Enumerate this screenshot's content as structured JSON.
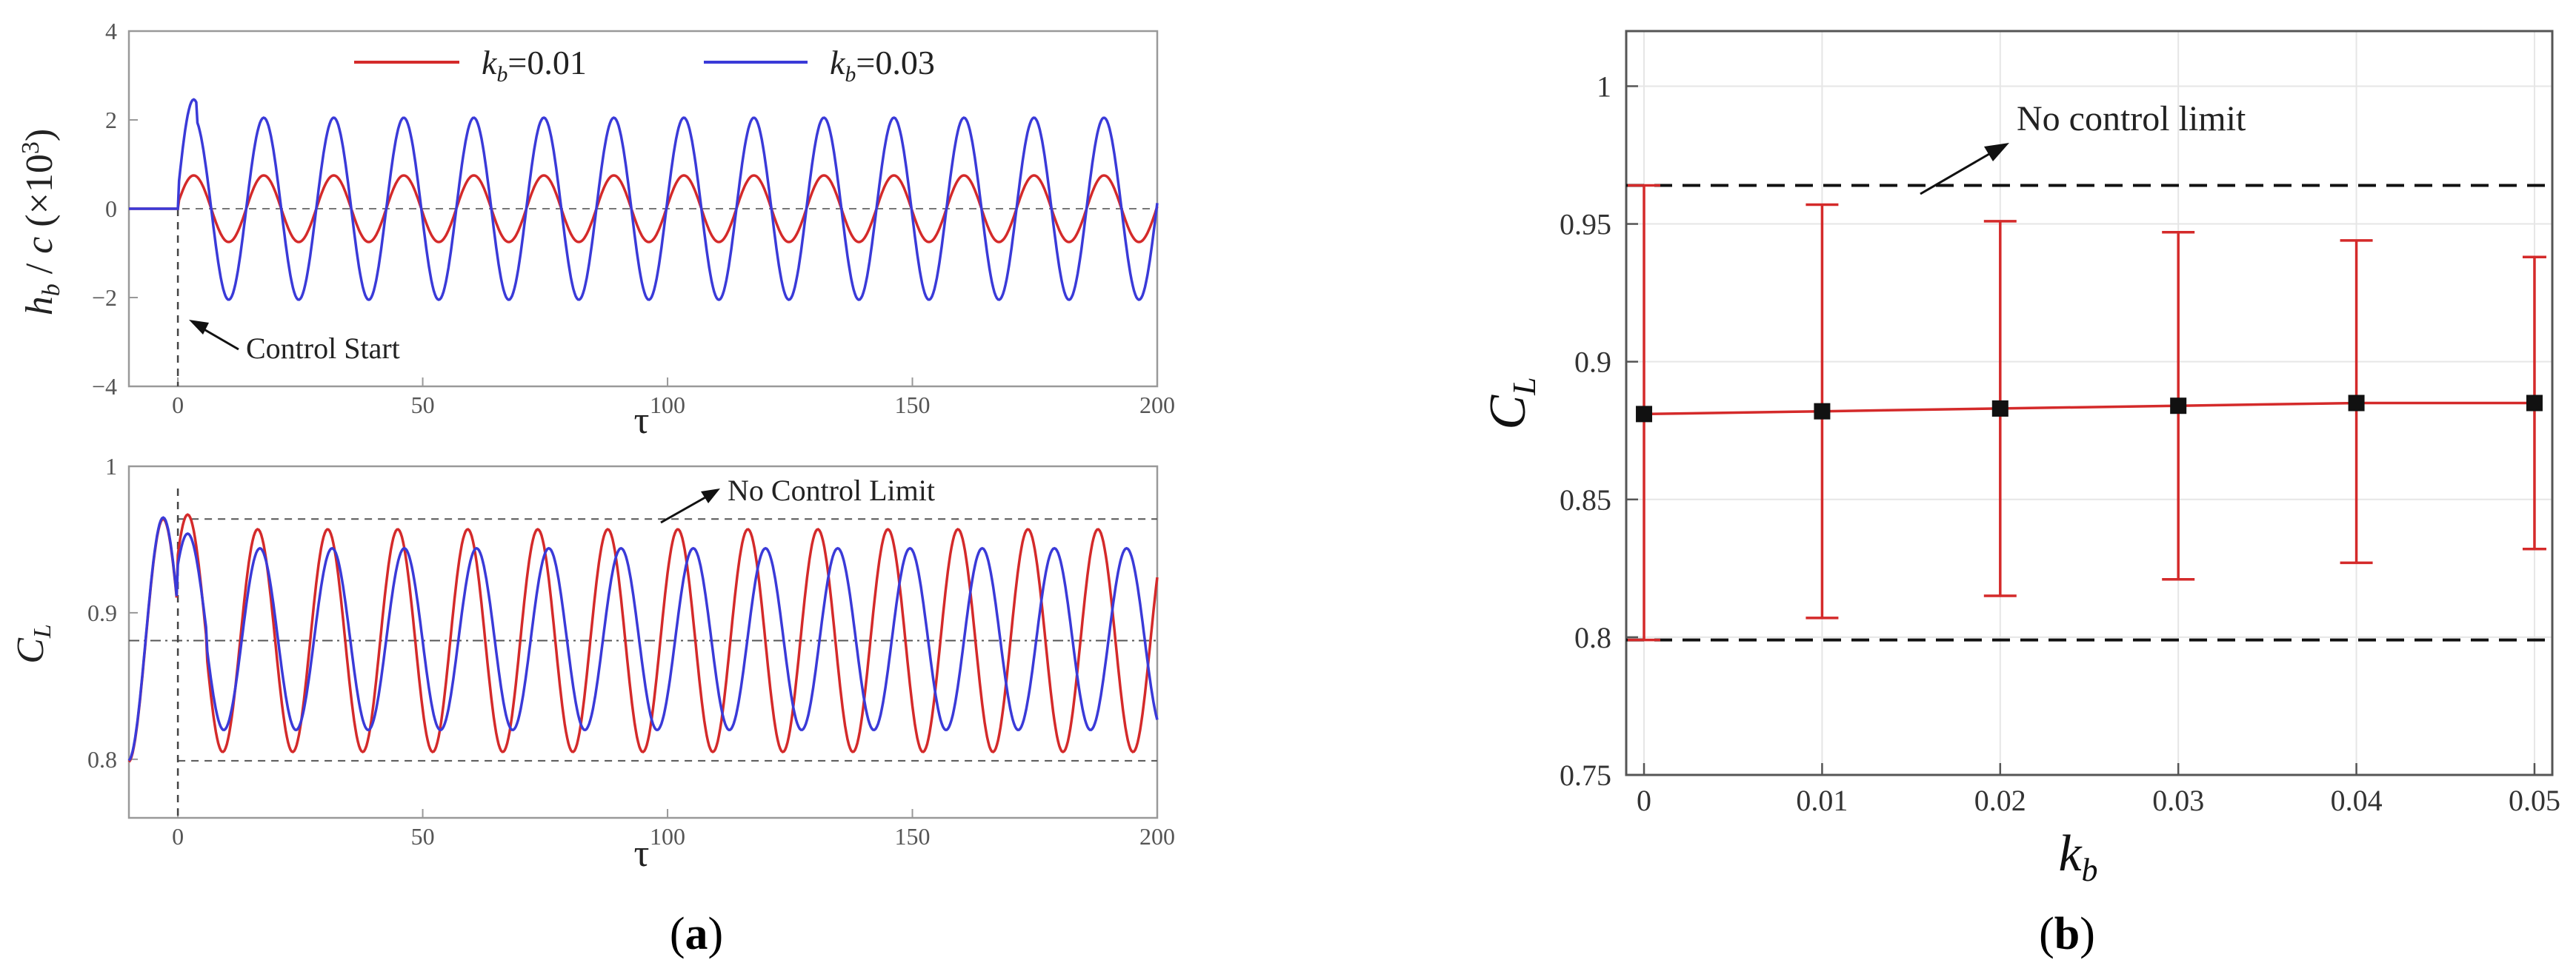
{
  "chart_data": [
    {
      "panel": "a-top",
      "type": "line",
      "xlabel": "τ",
      "ylabel": "h_b / c (×10³)",
      "xlim": [
        -10,
        200
      ],
      "ylim": [
        -4,
        4
      ],
      "xticks": [
        "0",
        "50",
        "100",
        "150",
        "200"
      ],
      "yticks": [
        "−4",
        "−2",
        "0",
        "2",
        "4"
      ],
      "grid": false,
      "legend": "top",
      "series": [
        {
          "name": "k_b=0.01",
          "label_k": "k",
          "label_sub": "b",
          "label_val": "=0.01",
          "color": "#d42a2a",
          "amplitude": 0.75,
          "period": 14.3,
          "start": 0
        },
        {
          "name": "k_b=0.03",
          "label_k": "k",
          "label_sub": "b",
          "label_val": "=0.03",
          "color": "#3a3ad8",
          "amplitude": 2.05,
          "period": 14.3,
          "start": 0
        }
      ],
      "reference_lines": [
        {
          "axis": "y",
          "value": 0,
          "style": "dashed"
        },
        {
          "axis": "x",
          "value": 0,
          "style": "dashed"
        }
      ],
      "annotations": [
        {
          "text": "Control Start",
          "x": 0,
          "y": -1.5
        }
      ]
    },
    {
      "panel": "a-bottom",
      "type": "line",
      "xlabel": "τ",
      "ylabel": "C_L",
      "xlim": [
        -10,
        200
      ],
      "ylim": [
        0.76,
        1.0
      ],
      "xticks": [
        "0",
        "50",
        "100",
        "150",
        "200"
      ],
      "yticks": [
        "0.8",
        "0.9",
        "1"
      ],
      "grid": false,
      "series": [
        {
          "name": "k_b=0.01",
          "color": "#d42a2a",
          "mean": 0.881,
          "amplitude": 0.076,
          "period": 14.3
        },
        {
          "name": "k_b=0.03",
          "color": "#3a3ad8",
          "mean": 0.882,
          "amplitude": 0.062,
          "period": 14.75
        }
      ],
      "reference_lines": [
        {
          "axis": "y",
          "value": 0.964,
          "style": "dashed"
        },
        {
          "axis": "y",
          "value": 0.799,
          "style": "dashed"
        },
        {
          "axis": "y",
          "value": 0.881,
          "style": "dashdot"
        },
        {
          "axis": "x",
          "value": 0,
          "style": "dashed"
        }
      ],
      "annotations": [
        {
          "text": "No Control Limit",
          "x": 110,
          "y": 0.975
        }
      ]
    },
    {
      "panel": "b",
      "type": "errorbar",
      "xlabel": "k_b",
      "ylabel": "C_L",
      "xlim": [
        -0.001,
        0.051
      ],
      "ylim": [
        0.75,
        1.02
      ],
      "xticks": [
        "0",
        "0.01",
        "0.02",
        "0.03",
        "0.04",
        "0.05"
      ],
      "yticks": [
        "0.75",
        "0.8",
        "0.85",
        "0.9",
        "0.95",
        "1"
      ],
      "grid": true,
      "x": [
        0,
        0.01,
        0.02,
        0.03,
        0.04,
        0.05
      ],
      "mean": [
        0.881,
        0.882,
        0.883,
        0.884,
        0.885,
        0.885
      ],
      "max": [
        0.964,
        0.957,
        0.951,
        0.947,
        0.944,
        0.938
      ],
      "min": [
        0.799,
        0.807,
        0.815,
        0.821,
        0.827,
        0.832
      ],
      "reference_lines": [
        {
          "value": 0.964
        },
        {
          "value": 0.799
        }
      ],
      "annotations": [
        {
          "text": "No control limit"
        }
      ],
      "color": "#d42a2a"
    }
  ],
  "captions": {
    "a": "a",
    "b": "b"
  }
}
